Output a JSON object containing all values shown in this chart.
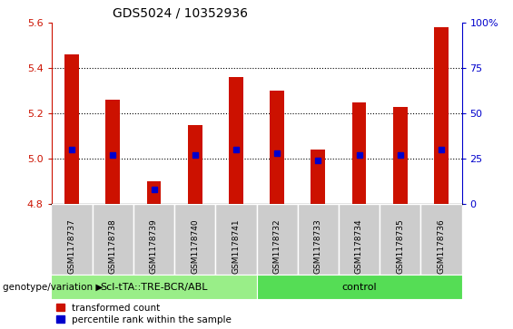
{
  "title": "GDS5024 / 10352936",
  "samples": [
    "GSM1178737",
    "GSM1178738",
    "GSM1178739",
    "GSM1178740",
    "GSM1178741",
    "GSM1178732",
    "GSM1178733",
    "GSM1178734",
    "GSM1178735",
    "GSM1178736"
  ],
  "transformed_count": [
    5.46,
    5.26,
    4.9,
    5.15,
    5.36,
    5.3,
    5.04,
    5.25,
    5.23,
    5.58
  ],
  "percentile_rank": [
    30,
    27,
    8,
    27,
    30,
    28,
    24,
    27,
    27,
    30
  ],
  "ylim": [
    4.8,
    5.6
  ],
  "yticks": [
    4.8,
    5.0,
    5.2,
    5.4,
    5.6
  ],
  "right_yticks": [
    0,
    25,
    50,
    75,
    100
  ],
  "right_tick_labels": [
    "0",
    "25",
    "50",
    "75",
    "100%"
  ],
  "bar_color": "#cc1100",
  "percentile_color": "#0000cc",
  "bar_width": 0.35,
  "group1_label": "Scl-tTA::TRE-BCR/ABL",
  "group2_label": "control",
  "group1_indices": [
    0,
    1,
    2,
    3,
    4
  ],
  "group2_indices": [
    5,
    6,
    7,
    8,
    9
  ],
  "group1_color": "#99ee88",
  "group2_color": "#55dd55",
  "xlabel_left": "genotype/variation",
  "legend_label1": "transformed count",
  "legend_label2": "percentile rank within the sample",
  "left_axis_color": "#cc1100",
  "right_axis_color": "#0000cc",
  "ticklabel_bg": "#cccccc",
  "grid_color": "#000000"
}
